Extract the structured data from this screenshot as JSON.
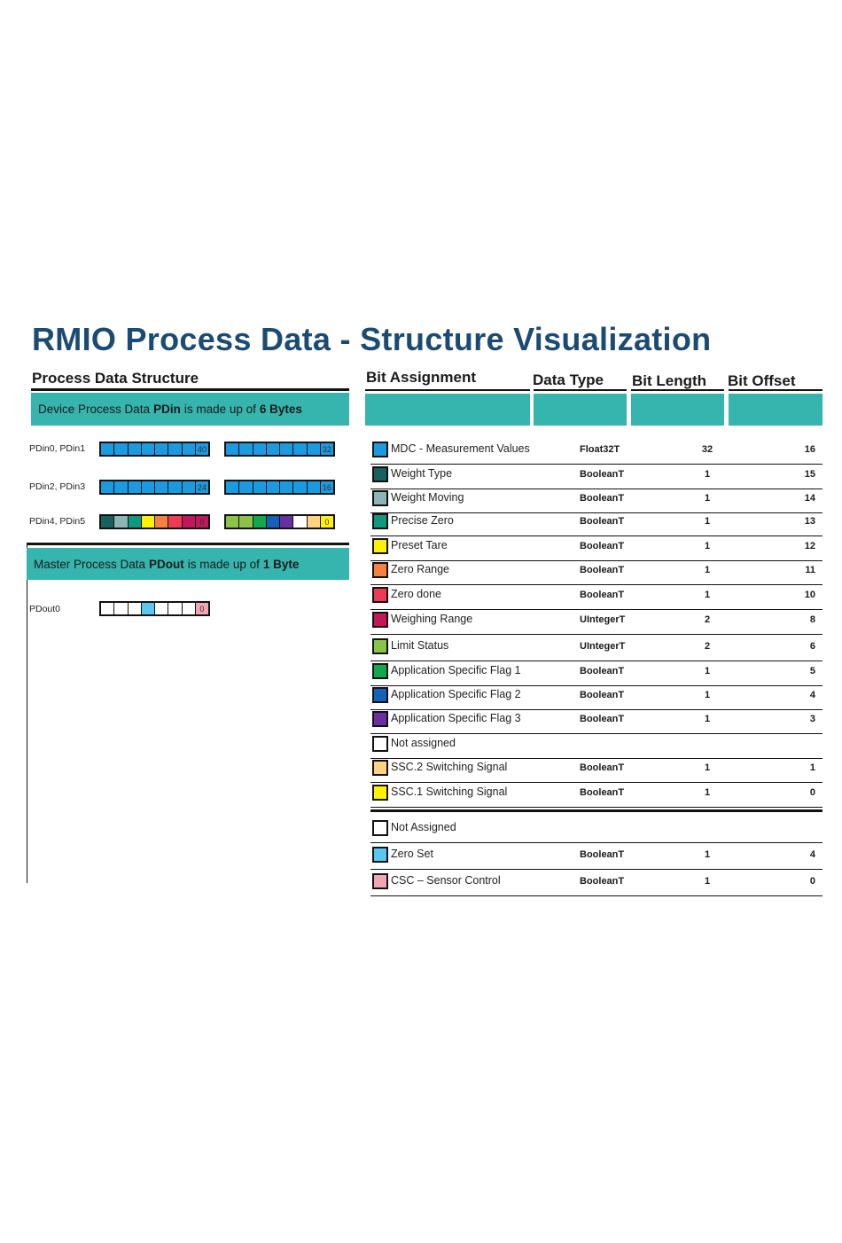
{
  "title": "RMIO Process Data - Structure Visualization",
  "left": {
    "heading": "Process Data Structure",
    "pdin_banner": {
      "pre": "Device Process Data",
      "bold1": "PDin",
      "mid": "is made up of",
      "bold2": "6 Bytes"
    },
    "pdout_banner": {
      "pre": "Master Process Data",
      "bold1": "PDout",
      "mid": "is made up of",
      "bold2": "1 Byte"
    },
    "rows": [
      {
        "label": "PDin0, PDin1",
        "bytes": [
          {
            "cells": [
              "#1a9ae0",
              "#1a9ae0",
              "#1a9ae0",
              "#1a9ae0",
              "#1a9ae0",
              "#1a9ae0",
              "#1a9ae0",
              "#1a9ae0"
            ],
            "mark": "40"
          },
          {
            "cells": [
              "#1a9ae0",
              "#1a9ae0",
              "#1a9ae0",
              "#1a9ae0",
              "#1a9ae0",
              "#1a9ae0",
              "#1a9ae0",
              "#1a9ae0"
            ],
            "mark": "32"
          }
        ]
      },
      {
        "label": "PDin2, PDin3",
        "bytes": [
          {
            "cells": [
              "#1a9ae0",
              "#1a9ae0",
              "#1a9ae0",
              "#1a9ae0",
              "#1a9ae0",
              "#1a9ae0",
              "#1a9ae0",
              "#1a9ae0"
            ],
            "mark": "24"
          },
          {
            "cells": [
              "#1a9ae0",
              "#1a9ae0",
              "#1a9ae0",
              "#1a9ae0",
              "#1a9ae0",
              "#1a9ae0",
              "#1a9ae0",
              "#1a9ae0"
            ],
            "mark": "16"
          }
        ]
      },
      {
        "label": "PDin4, PDin5",
        "bytes": [
          {
            "cells": [
              "#17625f",
              "#8cb5b5",
              "#12977f",
              "#fff200",
              "#f7803f",
              "#ee3a55",
              "#c2185b",
              "#c2185b"
            ],
            "mark": "8"
          },
          {
            "cells": [
              "#8bc34a",
              "#8bc34a",
              "#11a84e",
              "#1560b8",
              "#6a2fa0",
              "#ffffff",
              "#ffd280",
              "#fff200"
            ],
            "mark": "0"
          }
        ]
      }
    ],
    "pdout_row": {
      "label": "PDout0",
      "cells": [
        "#ffffff",
        "#ffffff",
        "#ffffff",
        "#5bc7f0",
        "#ffffff",
        "#ffffff",
        "#ffffff",
        "#f2a6b3"
      ],
      "mark": "0"
    }
  },
  "right": {
    "columns": [
      "Bit Assignment",
      "Data Type",
      "Bit Length",
      "Bit Offset"
    ],
    "pdin_rows": [
      {
        "color": "#1a9ae0",
        "name": "MDC - Measurement Values",
        "type": "Float32T",
        "length": "32",
        "offset": "16"
      },
      {
        "color": "#17625f",
        "name": "Weight Type",
        "type": "BooleanT",
        "length": "1",
        "offset": "15"
      },
      {
        "color": "#8cb5b5",
        "name": "Weight Moving",
        "type": "BooleanT",
        "length": "1",
        "offset": "14"
      },
      {
        "color": "#12977f",
        "name": "Precise Zero",
        "type": "BooleanT",
        "length": "1",
        "offset": "13"
      },
      {
        "color": "#fff200",
        "name": "Preset Tare",
        "type": "BooleanT",
        "length": "1",
        "offset": "12"
      },
      {
        "color": "#f7803f",
        "name": "Zero Range",
        "type": "BooleanT",
        "length": "1",
        "offset": "11"
      },
      {
        "color": "#ee3a55",
        "name": "Zero done",
        "type": "BooleanT",
        "length": "1",
        "offset": "10"
      },
      {
        "color": "#c2185b",
        "name": "Weighing Range",
        "type": "UIntegerT",
        "length": "2",
        "offset": "8"
      },
      {
        "color": "#8bc34a",
        "name": "Limit Status",
        "type": "UIntegerT",
        "length": "2",
        "offset": "6"
      },
      {
        "color": "#11a84e",
        "name": "Application Specific Flag 1",
        "type": "BooleanT",
        "length": "1",
        "offset": "5"
      },
      {
        "color": "#1560b8",
        "name": "Application Specific Flag 2",
        "type": "BooleanT",
        "length": "1",
        "offset": "4"
      },
      {
        "color": "#6a2fa0",
        "name": "Application Specific Flag 3",
        "type": "BooleanT",
        "length": "1",
        "offset": "3"
      },
      {
        "color": "#ffffff",
        "name": "Not assigned",
        "type": "",
        "length": "",
        "offset": ""
      },
      {
        "color": "#ffd280",
        "name": "SSC.2 Switching Signal",
        "type": "BooleanT",
        "length": "1",
        "offset": "1"
      },
      {
        "color": "#fff200",
        "name": "SSC.1 Switching Signal",
        "type": "BooleanT",
        "length": "1",
        "offset": "0"
      }
    ],
    "pdout_rows": [
      {
        "color": "#ffffff",
        "name": "Not Assigned",
        "type": "",
        "length": "",
        "offset": ""
      },
      {
        "color": "#5bc7f0",
        "name": "Zero Set",
        "type": "BooleanT",
        "length": "1",
        "offset": "4"
      },
      {
        "color": "#f2a6b3",
        "name": "CSC – Sensor Control",
        "type": "BooleanT",
        "length": "1",
        "offset": "0"
      }
    ]
  }
}
